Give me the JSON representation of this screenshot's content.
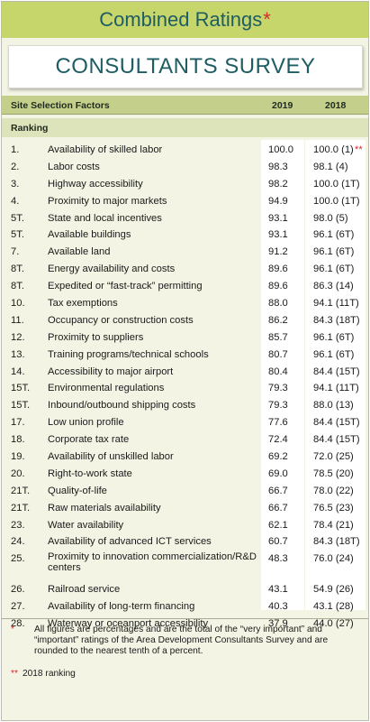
{
  "header": {
    "title": "Combined Ratings",
    "title_mark": "*",
    "subtitle": "CONSULTANTS SURVEY"
  },
  "columns": {
    "factor": "Site Selection Factors",
    "y2019": "2019",
    "y2018": "2018",
    "ranking": "Ranking"
  },
  "rows": [
    {
      "rank": "1.",
      "factor": "Availability of skilled labor",
      "v2019": "100.0",
      "v2018": "100.0 (1)",
      "mark": "**"
    },
    {
      "rank": "2.",
      "factor": "Labor costs",
      "v2019": "98.3",
      "v2018": "98.1 (4)"
    },
    {
      "rank": "3.",
      "factor": "Highway accessibility",
      "v2019": "98.2",
      "v2018": "100.0 (1T)"
    },
    {
      "rank": "4.",
      "factor": "Proximity to major markets",
      "v2019": "94.9",
      "v2018": "100.0 (1T)"
    },
    {
      "rank": "5T.",
      "factor": "State and local incentives",
      "v2019": "93.1",
      "v2018": "98.0 (5)"
    },
    {
      "rank": "5T.",
      "factor": "Available buildings",
      "v2019": "93.1",
      "v2018": "96.1 (6T)"
    },
    {
      "rank": "7.",
      "factor": "Available land",
      "v2019": "91.2",
      "v2018": "96.1 (6T)"
    },
    {
      "rank": "8T.",
      "factor": "Energy availability and costs",
      "v2019": "89.6",
      "v2018": "96.1 (6T)"
    },
    {
      "rank": "8T.",
      "factor": "Expedited or “fast-track” permitting",
      "v2019": "89.6",
      "v2018": "86.3 (14)"
    },
    {
      "rank": "10.",
      "factor": "Tax exemptions",
      "v2019": "88.0",
      "v2018": "94.1 (11T)"
    },
    {
      "rank": "11.",
      "factor": "Occupancy or construction costs",
      "v2019": "86.2",
      "v2018": "84.3 (18T)"
    },
    {
      "rank": "12.",
      "factor": "Proximity to suppliers",
      "v2019": "85.7",
      "v2018": "96.1 (6T)"
    },
    {
      "rank": "13.",
      "factor": "Training programs/technical schools",
      "v2019": "80.7",
      "v2018": "96.1 (6T)"
    },
    {
      "rank": "14.",
      "factor": "Accessibility to major airport",
      "v2019": "80.4",
      "v2018": "84.4 (15T)"
    },
    {
      "rank": "15T.",
      "factor": "Environmental regulations",
      "v2019": "79.3",
      "v2018": "94.1 (11T)"
    },
    {
      "rank": "15T.",
      "factor": "Inbound/outbound shipping costs",
      "v2019": "79.3",
      "v2018": "88.0 (13)"
    },
    {
      "rank": "17.",
      "factor": "Low union profile",
      "v2019": "77.6",
      "v2018": "84.4 (15T)"
    },
    {
      "rank": "18.",
      "factor": "Corporate tax rate",
      "v2019": "72.4",
      "v2018": "84.4 (15T)"
    },
    {
      "rank": "19.",
      "factor": "Availability of unskilled labor",
      "v2019": "69.2",
      "v2018": "72.0 (25)"
    },
    {
      "rank": "20.",
      "factor": "Right-to-work state",
      "v2019": "69.0",
      "v2018": "78.5 (20)"
    },
    {
      "rank": "21T.",
      "factor": "Quality-of-life",
      "v2019": "66.7",
      "v2018": "78.0 (22)"
    },
    {
      "rank": "21T.",
      "factor": "Raw materials availability",
      "v2019": "66.7",
      "v2018": "76.5 (23)"
    },
    {
      "rank": "23.",
      "factor": "Water availability",
      "v2019": "62.1",
      "v2018": "78.4 (21)"
    },
    {
      "rank": "24.",
      "factor": "Availability of advanced ICT services",
      "v2019": "60.7",
      "v2018": "84.3 (18T)"
    },
    {
      "rank": "25.",
      "factor": "Proximity to innovation commercialization/R&D centers",
      "v2019": "48.3",
      "v2018": "76.0 (24)",
      "tall": true
    },
    {
      "rank": "26.",
      "factor": "Railroad service",
      "v2019": "43.1",
      "v2018": "54.9 (26)"
    },
    {
      "rank": "27.",
      "factor": "Availability of long-term financing",
      "v2019": "40.3",
      "v2018": "43.1 (28)"
    },
    {
      "rank": "28.",
      "factor": "Waterway or oceanport accessibility",
      "v2019": "37.9",
      "v2018": "44.0 (27)"
    }
  ],
  "footnotes": {
    "note1_mark": "*",
    "note1": "All figures are percentages and are the total of the “very important” and “important” ratings of the Area Development Consultants Survey and are rounded to the nearest tenth of a percent.",
    "note2_mark": "**",
    "note2": "2018 ranking"
  },
  "colors": {
    "title_band": "#c7d66a",
    "title_text": "#1e5d63",
    "header_band": "#c5cf8c",
    "sub_band": "#dde3ba",
    "panel": "#f3f4e4",
    "accent_red": "#d42b2b"
  }
}
